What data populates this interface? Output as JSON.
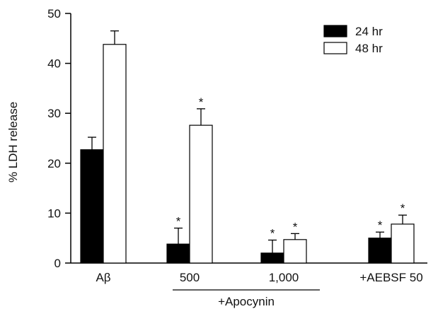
{
  "chart_data": {
    "type": "bar",
    "ylabel": "% LDH release",
    "ylim": [
      0,
      50
    ],
    "yticks": [
      0,
      10,
      20,
      30,
      40,
      50
    ],
    "grid": false,
    "legend_position": "top-right",
    "group_label": "+Apocynin",
    "categories": [
      "Aβ",
      "500",
      "1,000",
      "+AEBSF 50"
    ],
    "series": [
      {
        "name": "24 hr",
        "color": "#000000",
        "values": [
          22.7,
          3.8,
          2.0,
          5.0
        ],
        "errors": [
          2.5,
          3.2,
          2.6,
          1.2
        ],
        "significant": [
          false,
          true,
          true,
          true
        ]
      },
      {
        "name": "48 hr",
        "color": "#ffffff",
        "values": [
          43.8,
          27.6,
          4.7,
          7.8
        ],
        "errors": [
          2.7,
          3.3,
          1.2,
          1.8
        ],
        "significant": [
          false,
          true,
          true,
          true
        ]
      }
    ],
    "significance_marker": "*"
  }
}
